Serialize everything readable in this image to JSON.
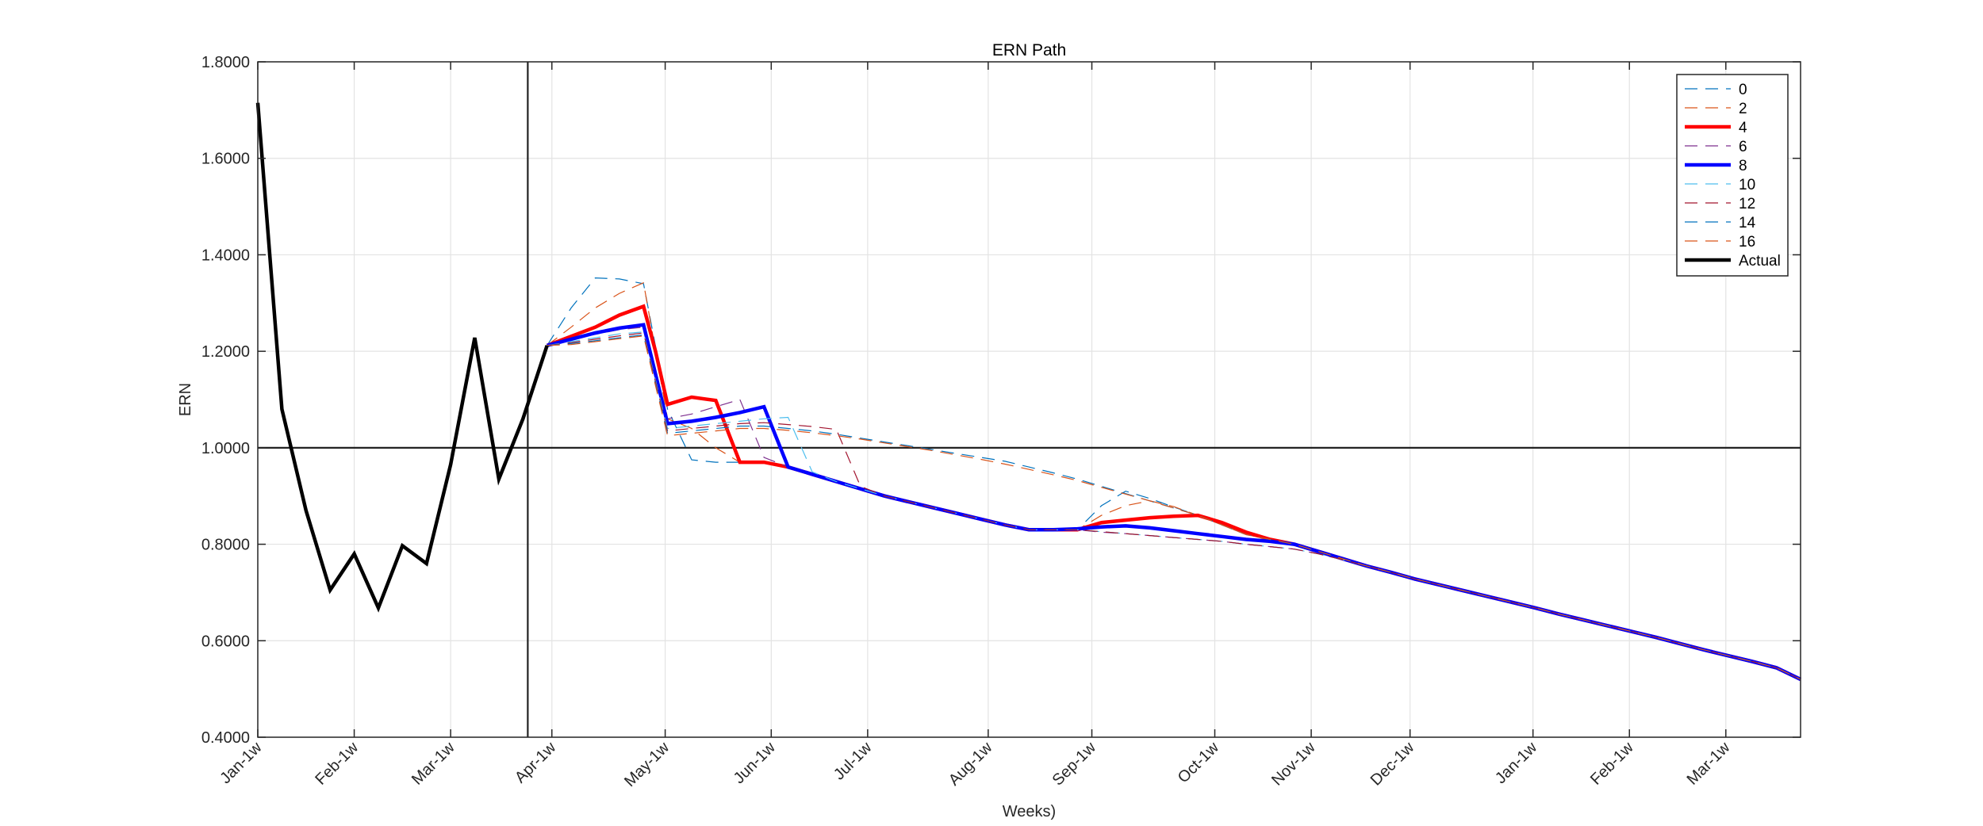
{
  "chart_data": {
    "type": "line",
    "title": "ERN Path",
    "xlabel": "Weeks)",
    "ylabel": "ERN",
    "x_unit": "weeks",
    "xlim": [
      0,
      64
    ],
    "ylim": [
      0.4,
      1.8
    ],
    "yticks": [
      "0.4000",
      "0.6000",
      "0.8000",
      "1.0000",
      "1.2000",
      "1.4000",
      "1.6000",
      "1.8000"
    ],
    "ytick_values": [
      0.4,
      0.6,
      0.8,
      1.0,
      1.2,
      1.4,
      1.6,
      1.8
    ],
    "xticks": [
      {
        "w": 0,
        "label": "Jan-1w"
      },
      {
        "w": 4,
        "label": "Feb-1w"
      },
      {
        "w": 8,
        "label": "Mar-1w"
      },
      {
        "w": 12.2,
        "label": "Apr-1w"
      },
      {
        "w": 16.9,
        "label": "May-1w"
      },
      {
        "w": 21.3,
        "label": "Jun-1w"
      },
      {
        "w": 25.3,
        "label": "Jul-1w"
      },
      {
        "w": 30.3,
        "label": "Aug-1w"
      },
      {
        "w": 34.6,
        "label": "Sep-1w"
      },
      {
        "w": 39.7,
        "label": "Oct-1w"
      },
      {
        "w": 43.7,
        "label": "Nov-1w"
      },
      {
        "w": 47.8,
        "label": "Dec-1w"
      },
      {
        "w": 52.9,
        "label": "Jan-1w"
      },
      {
        "w": 56.9,
        "label": "Feb-1w"
      },
      {
        "w": 60.9,
        "label": "Mar-1w"
      }
    ],
    "grid": true,
    "reference_lines": {
      "horizontal_y": 1.0,
      "vertical_week": 11.2
    },
    "legend_position": "top-right",
    "series": [
      {
        "name": "0",
        "style": "dashed",
        "color": "#0072BD",
        "width": 1.2,
        "x": [
          12,
          13,
          14,
          15,
          16,
          17,
          18,
          19,
          20,
          21,
          22,
          23,
          24,
          25,
          26,
          27,
          28,
          29,
          30,
          31,
          32,
          33,
          34,
          35,
          36,
          37,
          38,
          39,
          40,
          41,
          42,
          43,
          44,
          45,
          46,
          47,
          48,
          49,
          50,
          51,
          52,
          53,
          54,
          55,
          56,
          57,
          58,
          59,
          60,
          61,
          62,
          63,
          64
        ],
        "y": [
          1.212,
          1.29,
          1.352,
          1.35,
          1.34,
          1.08,
          0.975,
          0.97,
          0.97,
          0.97,
          0.96,
          0.945,
          0.93,
          0.915,
          0.9,
          0.888,
          0.876,
          0.864,
          0.852,
          0.84,
          0.83,
          0.83,
          0.83,
          0.88,
          0.91,
          0.895,
          0.877,
          0.86,
          0.84,
          0.82,
          0.81,
          0.8,
          0.785,
          0.77,
          0.755,
          0.742,
          0.728,
          0.716,
          0.704,
          0.692,
          0.68,
          0.668,
          0.655,
          0.643,
          0.631,
          0.619,
          0.607,
          0.594,
          0.581,
          0.569,
          0.557,
          0.544,
          0.52
        ]
      },
      {
        "name": "2",
        "style": "dashed",
        "color": "#D95319",
        "width": 1.2,
        "x": [
          12,
          13,
          14,
          15,
          16,
          17,
          18,
          19,
          20,
          21,
          22,
          23,
          24,
          25,
          26,
          27,
          28,
          29,
          30,
          31,
          32,
          33,
          34,
          35,
          36,
          37,
          38,
          39,
          40,
          41,
          42,
          43,
          44,
          45,
          46,
          47,
          48,
          49,
          50,
          51,
          52,
          53,
          54,
          55,
          56,
          57,
          58,
          59,
          60,
          61,
          62,
          63,
          64
        ],
        "y": [
          1.212,
          1.25,
          1.29,
          1.32,
          1.342,
          1.06,
          1.04,
          1.0,
          0.97,
          0.97,
          0.96,
          0.945,
          0.93,
          0.915,
          0.9,
          0.888,
          0.876,
          0.864,
          0.852,
          0.84,
          0.83,
          0.83,
          0.83,
          0.86,
          0.88,
          0.89,
          0.878,
          0.86,
          0.84,
          0.82,
          0.81,
          0.8,
          0.785,
          0.77,
          0.755,
          0.742,
          0.728,
          0.716,
          0.704,
          0.692,
          0.68,
          0.668,
          0.655,
          0.643,
          0.631,
          0.619,
          0.607,
          0.594,
          0.581,
          0.569,
          0.557,
          0.544,
          0.52
        ]
      },
      {
        "name": "4",
        "style": "solid",
        "color": "#FF0000",
        "width": 4.5,
        "x": [
          12,
          14,
          15,
          16,
          16.5,
          17,
          18,
          19,
          20,
          21,
          22,
          23,
          24,
          25,
          26,
          27,
          28,
          29,
          30,
          31,
          32,
          33,
          34,
          35,
          36,
          37,
          38,
          39,
          40,
          41,
          42,
          43,
          44,
          45,
          46,
          47,
          48,
          49,
          50,
          51,
          52,
          53,
          54,
          55,
          56,
          57,
          58,
          59,
          60,
          61,
          62,
          63,
          64
        ],
        "y": [
          1.212,
          1.25,
          1.275,
          1.293,
          1.2,
          1.09,
          1.105,
          1.098,
          0.97,
          0.97,
          0.96,
          0.945,
          0.93,
          0.915,
          0.9,
          0.888,
          0.876,
          0.864,
          0.852,
          0.84,
          0.83,
          0.83,
          0.83,
          0.845,
          0.85,
          0.855,
          0.858,
          0.86,
          0.845,
          0.825,
          0.81,
          0.8,
          0.785,
          0.77,
          0.755,
          0.742,
          0.728,
          0.716,
          0.704,
          0.692,
          0.68,
          0.668,
          0.655,
          0.643,
          0.631,
          0.619,
          0.607,
          0.594,
          0.581,
          0.569,
          0.557,
          0.544,
          0.52
        ]
      },
      {
        "name": "6",
        "style": "dashed",
        "color": "#7E2F8E",
        "width": 1.2,
        "x": [
          12,
          13,
          14,
          15,
          16,
          17,
          18,
          19,
          20,
          21,
          22,
          23,
          24,
          25,
          26,
          27,
          28,
          29,
          30,
          31,
          32,
          33,
          34,
          35,
          36,
          37,
          38,
          39,
          40,
          41,
          42,
          43,
          44,
          45,
          46,
          47,
          48,
          49,
          50,
          51,
          52,
          53,
          54,
          55,
          56,
          57,
          58,
          59,
          60,
          61,
          62,
          63,
          64
        ],
        "y": [
          1.212,
          1.225,
          1.235,
          1.245,
          1.25,
          1.06,
          1.07,
          1.085,
          1.1,
          0.98,
          0.96,
          0.945,
          0.93,
          0.915,
          0.9,
          0.888,
          0.876,
          0.864,
          0.852,
          0.84,
          0.83,
          0.83,
          0.83,
          0.825,
          0.822,
          0.818,
          0.814,
          0.81,
          0.806,
          0.8,
          0.795,
          0.79,
          0.78,
          0.768,
          0.755,
          0.742,
          0.728,
          0.716,
          0.704,
          0.692,
          0.68,
          0.668,
          0.655,
          0.643,
          0.631,
          0.619,
          0.607,
          0.594,
          0.581,
          0.569,
          0.557,
          0.544,
          0.52
        ]
      },
      {
        "name": "8",
        "style": "solid",
        "color": "#0000FF",
        "width": 4.5,
        "x": [
          12,
          13,
          14,
          15,
          16,
          17,
          18,
          19,
          20,
          21,
          22,
          23,
          24,
          25,
          26,
          27,
          28,
          29,
          30,
          31,
          32,
          33,
          34,
          35,
          36,
          37,
          38,
          39,
          40,
          41,
          42,
          43,
          44,
          45,
          46,
          47,
          48,
          49,
          50,
          51,
          52,
          53,
          54,
          55,
          56,
          57,
          58,
          59,
          60,
          61,
          62,
          63,
          64
        ],
        "y": [
          1.212,
          1.225,
          1.238,
          1.248,
          1.255,
          1.05,
          1.055,
          1.063,
          1.073,
          1.085,
          0.96,
          0.945,
          0.93,
          0.915,
          0.9,
          0.888,
          0.876,
          0.864,
          0.852,
          0.84,
          0.83,
          0.83,
          0.832,
          0.836,
          0.838,
          0.834,
          0.828,
          0.822,
          0.816,
          0.81,
          0.806,
          0.8,
          0.785,
          0.77,
          0.755,
          0.742,
          0.728,
          0.716,
          0.704,
          0.692,
          0.68,
          0.668,
          0.655,
          0.643,
          0.631,
          0.619,
          0.607,
          0.594,
          0.581,
          0.569,
          0.557,
          0.544,
          0.52
        ]
      },
      {
        "name": "10",
        "style": "dashed",
        "color": "#4DBEEE",
        "width": 1.2,
        "x": [
          12,
          13,
          14,
          15,
          16,
          17,
          18,
          19,
          20,
          21,
          22,
          23,
          24,
          25,
          26,
          27,
          28,
          29,
          30,
          31,
          32,
          33,
          34,
          35,
          36,
          37,
          38,
          39,
          40,
          41,
          42,
          43,
          44,
          45,
          46,
          47,
          48,
          49,
          50,
          51,
          52,
          53,
          54,
          55,
          56,
          57,
          58,
          59,
          60,
          61,
          62,
          63,
          64
        ],
        "y": [
          1.212,
          1.22,
          1.228,
          1.236,
          1.24,
          1.04,
          1.045,
          1.05,
          1.055,
          1.06,
          1.063,
          0.95,
          0.93,
          0.915,
          0.9,
          0.888,
          0.876,
          0.864,
          0.852,
          0.84,
          0.83,
          0.83,
          0.83,
          0.826,
          0.822,
          0.818,
          0.814,
          0.81,
          0.806,
          0.8,
          0.795,
          0.79,
          0.78,
          0.768,
          0.755,
          0.742,
          0.728,
          0.716,
          0.704,
          0.692,
          0.68,
          0.668,
          0.655,
          0.643,
          0.631,
          0.619,
          0.607,
          0.594,
          0.581,
          0.569,
          0.557,
          0.544,
          0.52
        ]
      },
      {
        "name": "12",
        "style": "dashed",
        "color": "#A2142F",
        "width": 1.2,
        "x": [
          12,
          13,
          14,
          15,
          16,
          17,
          18,
          19,
          20,
          21,
          22,
          23,
          24,
          25,
          26,
          27,
          28,
          29,
          30,
          31,
          32,
          33,
          34,
          35,
          36,
          37,
          38,
          39,
          40,
          41,
          42,
          43,
          44,
          45,
          46,
          47,
          48,
          49,
          50,
          51,
          52,
          53,
          54,
          55,
          56,
          57,
          58,
          59,
          60,
          61,
          62,
          63,
          64
        ],
        "y": [
          1.212,
          1.218,
          1.225,
          1.232,
          1.238,
          1.035,
          1.04,
          1.045,
          1.05,
          1.052,
          1.048,
          1.044,
          1.038,
          0.92,
          0.9,
          0.888,
          0.876,
          0.864,
          0.852,
          0.84,
          0.83,
          0.83,
          0.83,
          0.826,
          0.822,
          0.818,
          0.814,
          0.81,
          0.806,
          0.8,
          0.795,
          0.79,
          0.78,
          0.768,
          0.755,
          0.742,
          0.728,
          0.716,
          0.704,
          0.692,
          0.68,
          0.668,
          0.655,
          0.643,
          0.631,
          0.619,
          0.607,
          0.594,
          0.581,
          0.569,
          0.557,
          0.544,
          0.52
        ]
      },
      {
        "name": "14",
        "style": "dashed",
        "color": "#0072BD",
        "width": 1.2,
        "x": [
          12,
          13,
          14,
          15,
          16,
          17,
          18,
          19,
          20,
          21,
          22,
          23,
          24,
          25,
          26,
          27,
          28,
          29,
          30,
          31,
          32,
          33,
          34,
          35,
          36,
          37,
          38,
          39,
          40,
          41,
          42,
          43,
          44,
          45,
          46,
          47,
          48,
          49,
          50,
          51,
          52,
          53,
          54,
          55,
          56,
          57,
          58,
          59,
          60,
          61,
          62,
          63,
          64
        ],
        "y": [
          1.212,
          1.216,
          1.222,
          1.228,
          1.234,
          1.03,
          1.035,
          1.04,
          1.045,
          1.045,
          1.04,
          1.035,
          1.028,
          1.02,
          1.012,
          1.004,
          0.996,
          0.988,
          0.98,
          0.972,
          0.96,
          0.948,
          0.935,
          0.92,
          0.905,
          0.89,
          0.875,
          0.86,
          0.84,
          0.82,
          0.81,
          0.8,
          0.785,
          0.77,
          0.755,
          0.742,
          0.728,
          0.716,
          0.704,
          0.692,
          0.68,
          0.668,
          0.655,
          0.643,
          0.631,
          0.619,
          0.607,
          0.594,
          0.581,
          0.569,
          0.557,
          0.544,
          0.52
        ]
      },
      {
        "name": "16",
        "style": "dashed",
        "color": "#D95319",
        "width": 1.2,
        "x": [
          12,
          13,
          14,
          15,
          16,
          17,
          18,
          19,
          20,
          21,
          22,
          23,
          24,
          25,
          26,
          27,
          28,
          29,
          30,
          31,
          32,
          33,
          34,
          35,
          36,
          37,
          38,
          39,
          40,
          41,
          42,
          43,
          44,
          45,
          46,
          47,
          48,
          49,
          50,
          51,
          52,
          53,
          54,
          55,
          56,
          57,
          58,
          59,
          60,
          61,
          62,
          63,
          64
        ],
        "y": [
          1.212,
          1.214,
          1.22,
          1.226,
          1.232,
          1.025,
          1.03,
          1.035,
          1.04,
          1.04,
          1.036,
          1.031,
          1.025,
          1.018,
          1.01,
          1.002,
          0.994,
          0.985,
          0.976,
          0.966,
          0.955,
          0.944,
          0.932,
          0.918,
          0.904,
          0.89,
          0.875,
          0.86,
          0.84,
          0.82,
          0.81,
          0.8,
          0.785,
          0.77,
          0.755,
          0.742,
          0.728,
          0.716,
          0.704,
          0.692,
          0.68,
          0.668,
          0.655,
          0.643,
          0.631,
          0.619,
          0.607,
          0.594,
          0.581,
          0.569,
          0.557,
          0.544,
          0.52
        ]
      },
      {
        "name": "Actual",
        "style": "solid",
        "color": "#000000",
        "width": 4.5,
        "x": [
          0,
          1,
          2,
          3,
          4,
          5,
          6,
          7,
          8,
          9,
          10,
          11,
          12
        ],
        "y": [
          1.715,
          1.08,
          0.87,
          0.705,
          0.78,
          0.668,
          0.797,
          0.76,
          0.965,
          1.228,
          0.935,
          1.06,
          1.212
        ]
      }
    ]
  }
}
